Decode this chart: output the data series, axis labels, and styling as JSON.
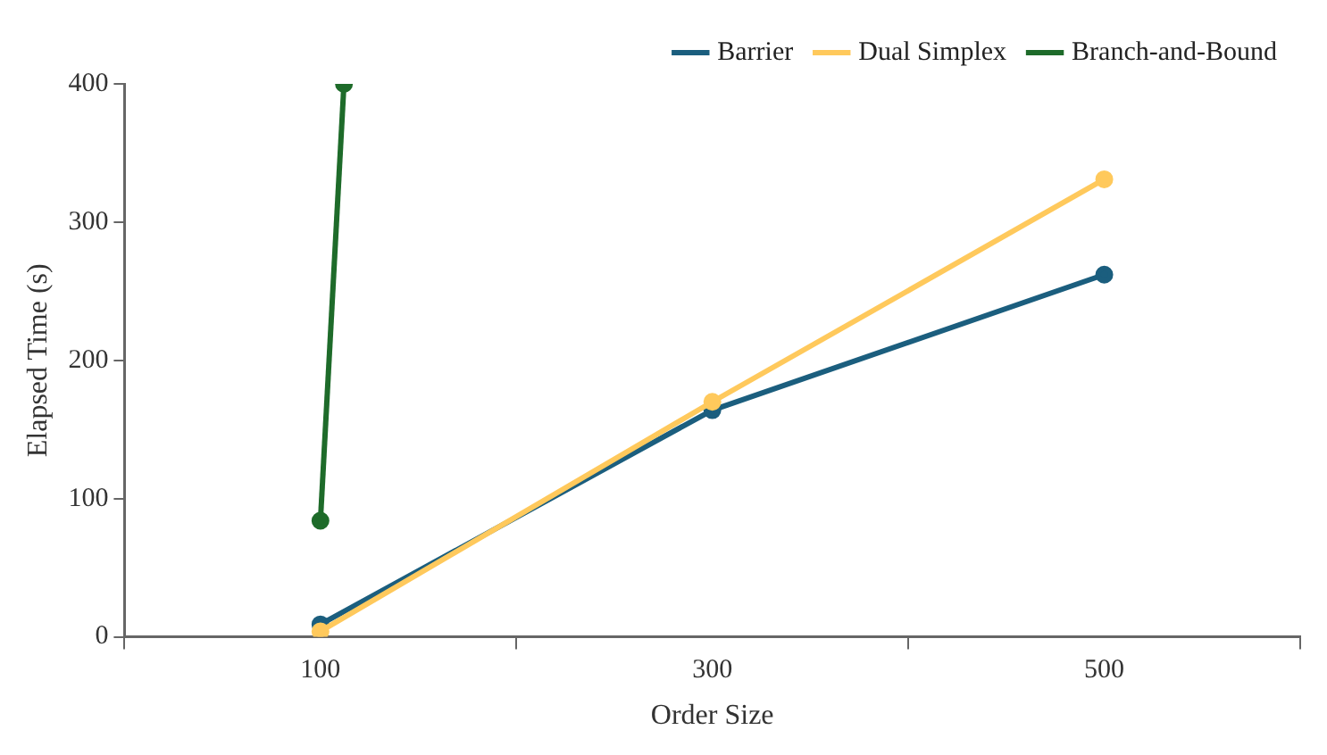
{
  "chart_data": {
    "type": "line",
    "xlabel": "Order Size",
    "ylabel": "Elapsed Time (s)",
    "xlim": [
      0,
      600
    ],
    "xticks": [
      {
        "value": 0,
        "label": null
      },
      {
        "value": 100,
        "label": "100"
      },
      {
        "value": 200,
        "label": null
      },
      {
        "value": 300,
        "label": "300"
      },
      {
        "value": 400,
        "label": null
      },
      {
        "value": 500,
        "label": "500"
      },
      {
        "value": 600,
        "label": null
      }
    ],
    "ylim": [
      0,
      400
    ],
    "yticks": [
      0,
      100,
      200,
      300,
      400
    ],
    "series": [
      {
        "name": "Barrier",
        "color": "#1b5e7e",
        "x": [
          100,
          300,
          500
        ],
        "values": [
          9,
          164,
          262
        ]
      },
      {
        "name": "Dual Simplex",
        "color": "#ffc95c",
        "x": [
          100,
          300,
          500
        ],
        "values": [
          4,
          170,
          331
        ]
      },
      {
        "name": "Branch-and-Bound",
        "color": "#1e6b2a",
        "x": [
          100,
          112
        ],
        "values": [
          84,
          400
        ]
      }
    ],
    "legend": "top right",
    "grid": false,
    "marker": "circle",
    "line_style": "solid"
  }
}
